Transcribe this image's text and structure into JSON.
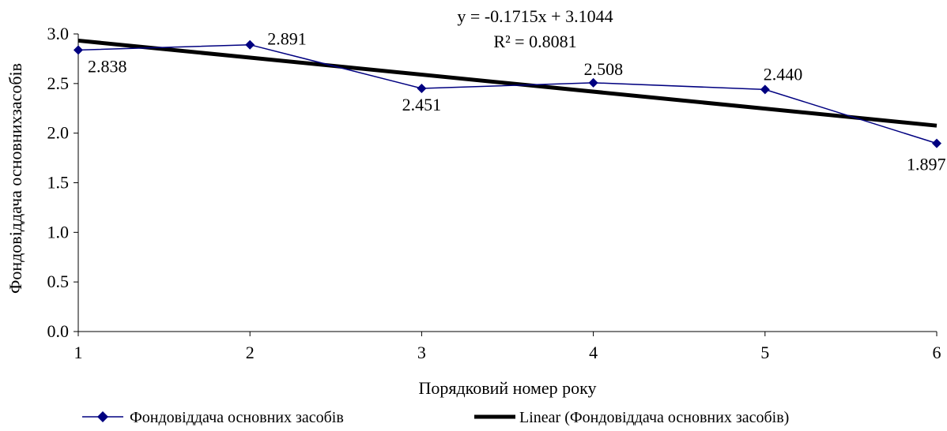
{
  "chart_data": {
    "type": "line",
    "title": "",
    "xlabel": "Порядковий номер року",
    "ylabel": "Фондовіддача основнихзасобів",
    "xlim": [
      1,
      6
    ],
    "ylim": [
      0,
      3.0
    ],
    "x_ticks": [
      "1",
      "2",
      "3",
      "4",
      "5",
      "6"
    ],
    "y_ticks": [
      "0.0",
      "0.5",
      "1.0",
      "1.5",
      "2.0",
      "2.5",
      "3.0"
    ],
    "grid": false,
    "legend_position": "bottom",
    "series": [
      {
        "name": "Фондовіддача основних засобів",
        "x": [
          1,
          2,
          3,
          4,
          5,
          6
        ],
        "values": [
          2.838,
          2.891,
          2.451,
          2.508,
          2.44,
          1.897
        ],
        "labels": [
          "2.838",
          "2.891",
          "2.451",
          "2.508",
          "2.440",
          "1.897"
        ],
        "color": "#000080",
        "marker": "diamond"
      }
    ],
    "trendline": {
      "name": "Linear (Фондовіддача основних засобів)",
      "slope": -0.1715,
      "intercept": 3.1044,
      "color": "#000000",
      "equation": "y = -0.1715x + 3.1044",
      "r_squared": "R² = 0.8081"
    }
  }
}
